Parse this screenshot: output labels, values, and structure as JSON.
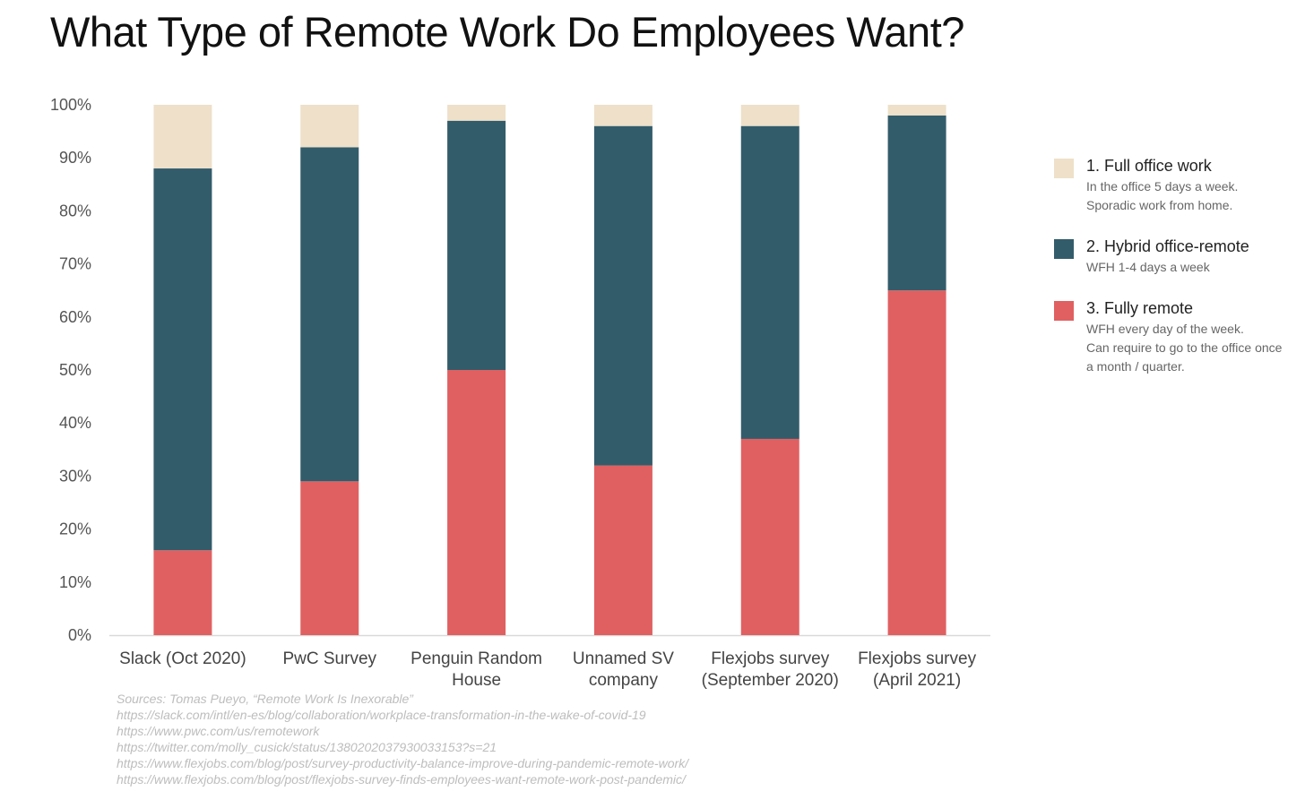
{
  "chart_data": {
    "type": "bar",
    "stacked": true,
    "title": "What Type of Remote Work Do Employees Want?",
    "xlabel": "",
    "ylabel": "",
    "ylim": [
      0,
      100
    ],
    "yticks": [
      0,
      10,
      20,
      30,
      40,
      50,
      60,
      70,
      80,
      90,
      100
    ],
    "ytick_labels": [
      "0%",
      "10%",
      "20%",
      "30%",
      "40%",
      "50%",
      "60%",
      "70%",
      "80%",
      "90%",
      "100%"
    ],
    "categories": [
      [
        "Slack (Oct 2020)"
      ],
      [
        "PwC Survey"
      ],
      [
        "Penguin Random",
        "House"
      ],
      [
        "Unnamed SV",
        "company"
      ],
      [
        "Flexjobs survey",
        "(September 2020)"
      ],
      [
        "Flexjobs survey",
        "(April 2021)"
      ]
    ],
    "series": [
      {
        "name": "3. Fully remote",
        "color": "#e06061",
        "values": [
          16,
          29,
          50,
          32,
          37,
          65
        ]
      },
      {
        "name": "2. Hybrid office-remote",
        "color": "#335c6b",
        "values": [
          72,
          63,
          47,
          64,
          59,
          33
        ]
      },
      {
        "name": "1. Full office work",
        "color": "#eee0c9",
        "values": [
          12,
          8,
          3,
          4,
          4,
          2
        ]
      }
    ],
    "legend_position": "right",
    "grid": false
  },
  "legend": [
    {
      "label": "1. Full office work",
      "color": "#eee0c9",
      "desc": [
        "In the office 5 days a week.",
        "Sporadic work from home."
      ]
    },
    {
      "label": "2. Hybrid office-remote",
      "color": "#335c6b",
      "desc": [
        "WFH 1-4 days a week"
      ]
    },
    {
      "label": "3. Fully remote",
      "color": "#e06061",
      "desc": [
        "WFH every day of the week.",
        "Can require to go to the office once",
        "a month / quarter."
      ]
    }
  ],
  "sources": [
    "Sources: Tomas Pueyo, “Remote Work Is Inexorable”",
    "https://slack.com/intl/en-es/blog/collaboration/workplace-transformation-in-the-wake-of-covid-19",
    "https://www.pwc.com/us/remotework",
    "https://twitter.com/molly_cusick/status/1380202037930033153?s=21",
    "https://www.flexjobs.com/blog/post/survey-productivity-balance-improve-during-pandemic-remote-work/",
    "https://www.flexjobs.com/blog/post/flexjobs-survey-finds-employees-want-remote-work-post-pandemic/"
  ]
}
